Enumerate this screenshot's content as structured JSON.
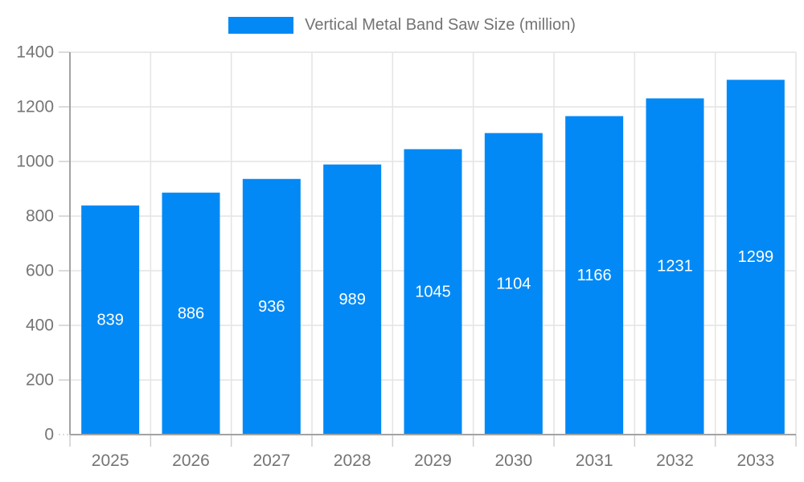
{
  "legend": {
    "position": "top",
    "swatch_color": "#0289f5"
  },
  "chart_data": {
    "type": "bar",
    "title": "Vertical Metal Band Saw Size (million)",
    "xlabel": "",
    "ylabel": "",
    "categories": [
      "2025",
      "2026",
      "2027",
      "2028",
      "2029",
      "2030",
      "2031",
      "2032",
      "2033"
    ],
    "values": [
      839,
      886,
      936,
      989,
      1045,
      1104,
      1166,
      1231,
      1299
    ],
    "ylim": [
      0,
      1400
    ],
    "yticks": [
      0,
      200,
      400,
      600,
      800,
      1000,
      1200,
      1400
    ],
    "grid": true,
    "legend_position": "top",
    "bar_color": "#0289f5",
    "value_label_color": "#ffffff",
    "grid_color": "#e4e4e4",
    "axis_color": "#a3a3a3",
    "tick_mark_color": "#cfcfcf",
    "tick_text_color": "#757575"
  }
}
